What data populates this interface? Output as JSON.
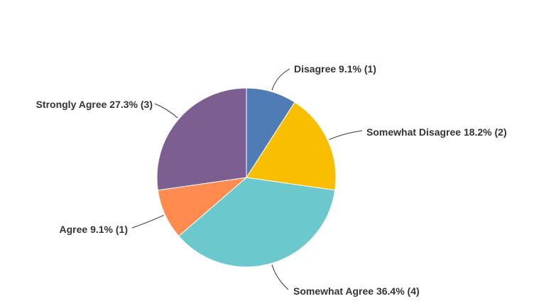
{
  "chart_data": {
    "type": "pie",
    "start_angle": "top",
    "direction": "clockwise",
    "slices": [
      {
        "label": "Disagree",
        "percent": 9.1,
        "count": 1,
        "color": "#507cb6",
        "text": "Disagree 9.1% (1)"
      },
      {
        "label": "Somewhat Disagree",
        "percent": 18.2,
        "count": 2,
        "color": "#f9be00",
        "text": "Somewhat Disagree 18.2% (2)"
      },
      {
        "label": "Somewhat Agree",
        "percent": 36.4,
        "count": 4,
        "color": "#6bc8cd",
        "text": "Somewhat Agree 36.4% (4)"
      },
      {
        "label": "Agree",
        "percent": 9.1,
        "count": 1,
        "color": "#ff8b4f",
        "text": "Agree 9.1% (1)"
      },
      {
        "label": "Strongly Agree",
        "percent": 27.3,
        "count": 3,
        "color": "#7d5e90",
        "text": "Strongly Agree 27.3% (3)"
      }
    ]
  }
}
